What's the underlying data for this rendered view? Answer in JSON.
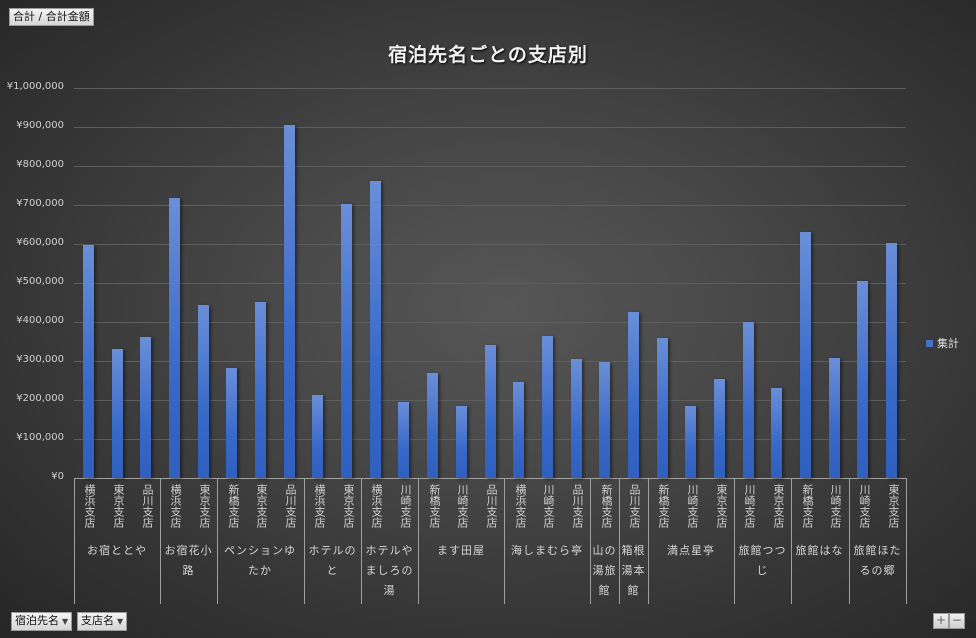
{
  "header": {
    "value_field_button": "合計 / 合計金額"
  },
  "footer": {
    "axis_field_buttons": [
      {
        "label": "宿泊先名",
        "icon": "dropdown-arrow-icon"
      },
      {
        "label": "支店名",
        "icon": "dropdown-arrow-icon"
      }
    ],
    "expand_button": "+",
    "collapse_button": "−"
  },
  "legend": {
    "label": "集計",
    "color": "#4472c4"
  },
  "chart_data": {
    "type": "bar",
    "title": "宿泊先名ごとの支店別",
    "xlabel": "",
    "ylabel": "",
    "ylim": [
      0,
      1000000
    ],
    "yticks": [
      "¥0",
      "¥100,000",
      "¥200,000",
      "¥300,000",
      "¥400,000",
      "¥500,000",
      "¥600,000",
      "¥700,000",
      "¥800,000",
      "¥900,000",
      "¥1,000,000"
    ],
    "grid": true,
    "legend_position": "right",
    "series": [
      {
        "name": "集計",
        "color": "#4472c4"
      }
    ],
    "groups": [
      {
        "name": "お宿ととや",
        "bars": [
          {
            "branch": "横浜支店",
            "value": 597000
          },
          {
            "branch": "東京支店",
            "value": 331000
          },
          {
            "branch": "品川支店",
            "value": 362000
          }
        ]
      },
      {
        "name": "お宿花小路",
        "bars": [
          {
            "branch": "横浜支店",
            "value": 718000
          },
          {
            "branch": "東京支店",
            "value": 444000
          }
        ]
      },
      {
        "name": "ペンションゆたか",
        "bars": [
          {
            "branch": "新橋支店",
            "value": 282000
          },
          {
            "branch": "東京支店",
            "value": 451000
          },
          {
            "branch": "品川支店",
            "value": 905000
          }
        ]
      },
      {
        "name": "ホテルのと",
        "bars": [
          {
            "branch": "横浜支店",
            "value": 213000
          },
          {
            "branch": "東京支店",
            "value": 703000
          }
        ]
      },
      {
        "name": "ホテルやましろの湯",
        "bars": [
          {
            "branch": "横浜支店",
            "value": 762000
          },
          {
            "branch": "川崎支店",
            "value": 195000
          }
        ]
      },
      {
        "name": "ます田屋",
        "bars": [
          {
            "branch": "新橋支店",
            "value": 269000
          },
          {
            "branch": "川崎支店",
            "value": 185000
          },
          {
            "branch": "品川支店",
            "value": 341000
          }
        ]
      },
      {
        "name": "海しまむら亭",
        "bars": [
          {
            "branch": "横浜支店",
            "value": 246000
          },
          {
            "branch": "川崎支店",
            "value": 364000
          },
          {
            "branch": "品川支店",
            "value": 305000
          }
        ]
      },
      {
        "name": "山の湯旅館",
        "bars": [
          {
            "branch": "新橋支店",
            "value": 297000
          }
        ]
      },
      {
        "name": "箱根湯本館",
        "bars": [
          {
            "branch": "品川支店",
            "value": 426000
          }
        ]
      },
      {
        "name": "満点星亭",
        "bars": [
          {
            "branch": "新橋支店",
            "value": 359000
          },
          {
            "branch": "川崎支店",
            "value": 185000
          },
          {
            "branch": "東京支店",
            "value": 254000
          }
        ]
      },
      {
        "name": "旅館つつじ",
        "bars": [
          {
            "branch": "川崎支店",
            "value": 400000
          },
          {
            "branch": "東京支店",
            "value": 231000
          }
        ]
      },
      {
        "name": "旅館はな",
        "bars": [
          {
            "branch": "新橋支店",
            "value": 631000
          },
          {
            "branch": "川崎支店",
            "value": 308000
          }
        ]
      },
      {
        "name": "旅館ほたるの郷",
        "bars": [
          {
            "branch": "川崎支店",
            "value": 505000
          },
          {
            "branch": "東京支店",
            "value": 603000
          }
        ]
      }
    ]
  }
}
